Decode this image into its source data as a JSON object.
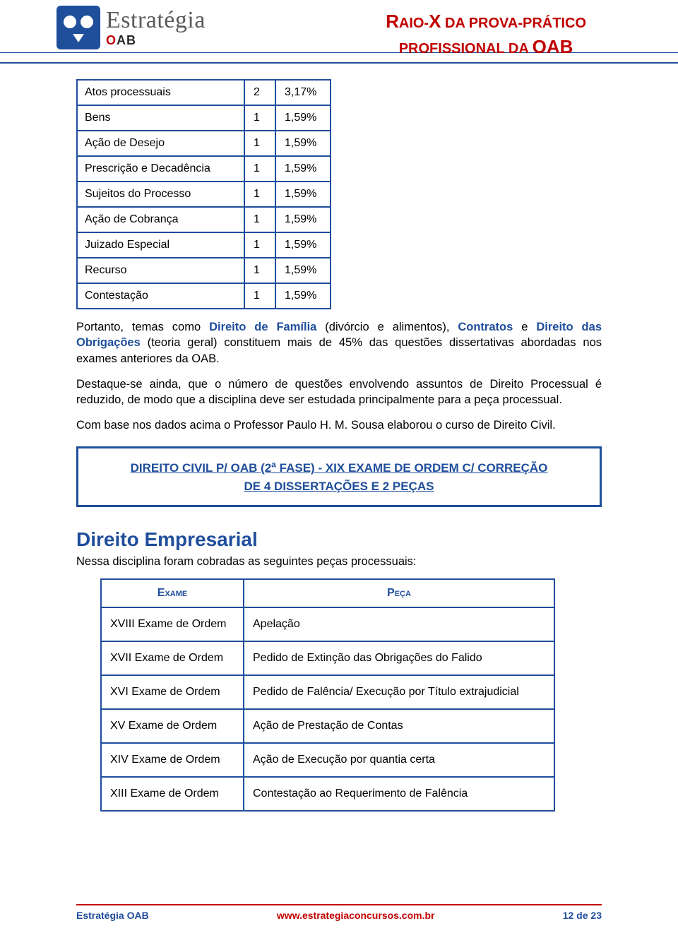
{
  "header": {
    "logo_main": "Estratégia",
    "logo_sub_prefix": "O",
    "logo_sub_a": "A",
    "logo_sub_b": "B",
    "title_line1_pre": "R",
    "title_line1_mid": "AIO-",
    "title_line1_x": "X",
    "title_line1_rest": " DA PROVA-PRÁTICO",
    "title_line2_pre": "PROFISSIONAL DA ",
    "title_line2_oab": "OAB"
  },
  "stats_table": {
    "rows": [
      {
        "label": "Atos processuais",
        "count": "2",
        "pct": "3,17%"
      },
      {
        "label": "Bens",
        "count": "1",
        "pct": "1,59%"
      },
      {
        "label": "Ação de Desejo",
        "count": "1",
        "pct": "1,59%"
      },
      {
        "label": "Prescrição e Decadência",
        "count": "1",
        "pct": "1,59%"
      },
      {
        "label": "Sujeitos do Processo",
        "count": "1",
        "pct": "1,59%"
      },
      {
        "label": "Ação de Cobrança",
        "count": "1",
        "pct": "1,59%"
      },
      {
        "label": "Juizado Especial",
        "count": "1",
        "pct": "1,59%"
      },
      {
        "label": "Recurso",
        "count": "1",
        "pct": "1,59%"
      },
      {
        "label": "Contestação",
        "count": "1",
        "pct": "1,59%"
      }
    ]
  },
  "paragraphs": {
    "p1_pre": "Portanto, temas como ",
    "p1_hl1": "Direito de Família",
    "p1_mid1": " (divórcio e alimentos), ",
    "p1_hl2": "Contratos",
    "p1_mid2": " e ",
    "p1_hl3": "Direito das Obrigações",
    "p1_post": " (teoria geral) constituem mais de 45% das questões dissertativas abordadas nos exames anteriores da OAB.",
    "p2": "Destaque-se ainda, que o número de questões envolvendo assuntos de Direito Processual é reduzido, de modo que a disciplina deve ser estudada principalmente para a peça processual.",
    "p3": "Com base nos dados acima o Professor Paulo H. M. Sousa elaborou o curso de Direito Civil."
  },
  "link_box": {
    "text_line1_pre": "DIREITO CIVIL P/ OAB (2",
    "text_line1_sup": "a",
    "text_line1_post": " FASE) - XIX EXAME DE ORDEM C/ CORREÇÃO",
    "text_line2": "DE 4 DISSERTAÇÕES E 2 PEÇAS"
  },
  "section2": {
    "title": "Direito Empresarial",
    "intro": "Nessa disciplina foram cobradas as seguintes peças processuais:",
    "headers": {
      "col1": "Exame",
      "col2": "Peça"
    },
    "rows": [
      {
        "exam": "XVIII Exame de Ordem",
        "peca": "Apelação"
      },
      {
        "exam": "XVII Exame de Ordem",
        "peca": "Pedido de Extinção das Obrigações do Falido"
      },
      {
        "exam": "XVI Exame de Ordem",
        "peca": "Pedido de Falência/ Execução por Título extrajudicial"
      },
      {
        "exam": "XV Exame de Ordem",
        "peca": "Ação de Prestação de Contas"
      },
      {
        "exam": "XIV Exame de Ordem",
        "peca": "Ação de Execução por quantia certa"
      },
      {
        "exam": "XIII Exame de Ordem",
        "peca": "Contestação ao Requerimento de Falência"
      }
    ]
  },
  "footer": {
    "left": "Estratégia OAB",
    "center": "www.estrategiaconcursos.com.br",
    "right_pre": "12",
    "right_mid": " de ",
    "right_post": "23"
  },
  "colors": {
    "brand_blue": "#1f4e9b",
    "brand_red": "#c00000",
    "text_black": "#000000",
    "background": "#ffffff",
    "logo_gray": "#5b5b5b"
  }
}
